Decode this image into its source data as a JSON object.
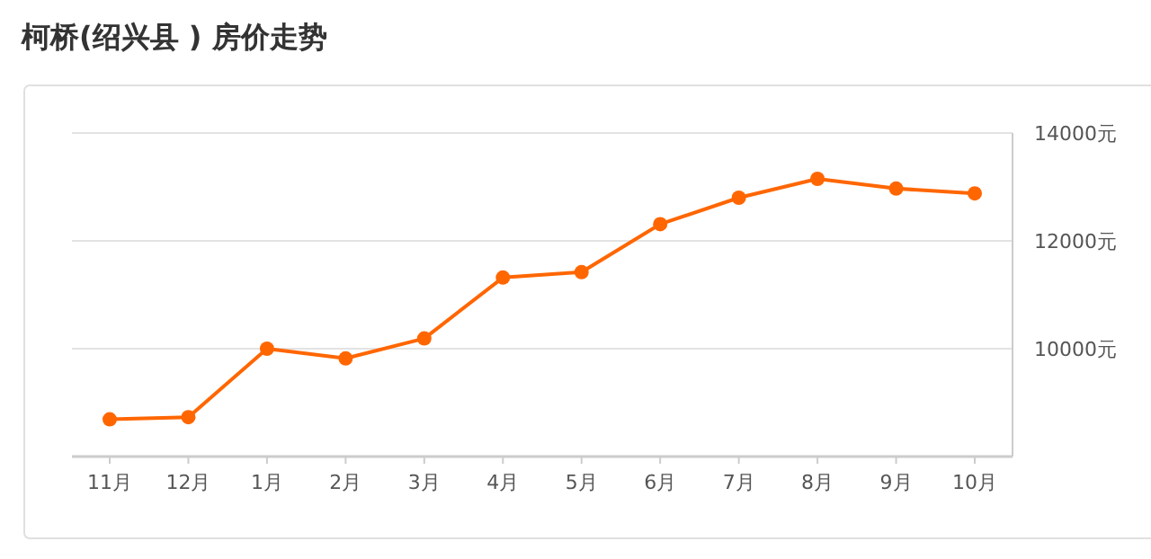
{
  "chart_data": {
    "type": "line",
    "title": "柯桥(绍兴县 ) 房价走势",
    "categories": [
      "11月",
      "12月",
      "1月",
      "2月",
      "3月",
      "4月",
      "5月",
      "6月",
      "7月",
      "8月",
      "9月",
      "10月"
    ],
    "series": [
      {
        "color": "#ff6600",
        "values": [
          8690,
          8730,
          10000,
          9820,
          10190,
          11320,
          11420,
          12310,
          12800,
          13150,
          12970,
          12880
        ]
      }
    ],
    "ylim": [
      8000,
      14000
    ],
    "yticks": [
      {
        "value": 10000,
        "label": "10000元"
      },
      {
        "value": 12000,
        "label": "12000元"
      },
      {
        "value": 14000,
        "label": "14000元"
      }
    ],
    "grid": "y",
    "marker": "circle",
    "line_style": "solid"
  }
}
